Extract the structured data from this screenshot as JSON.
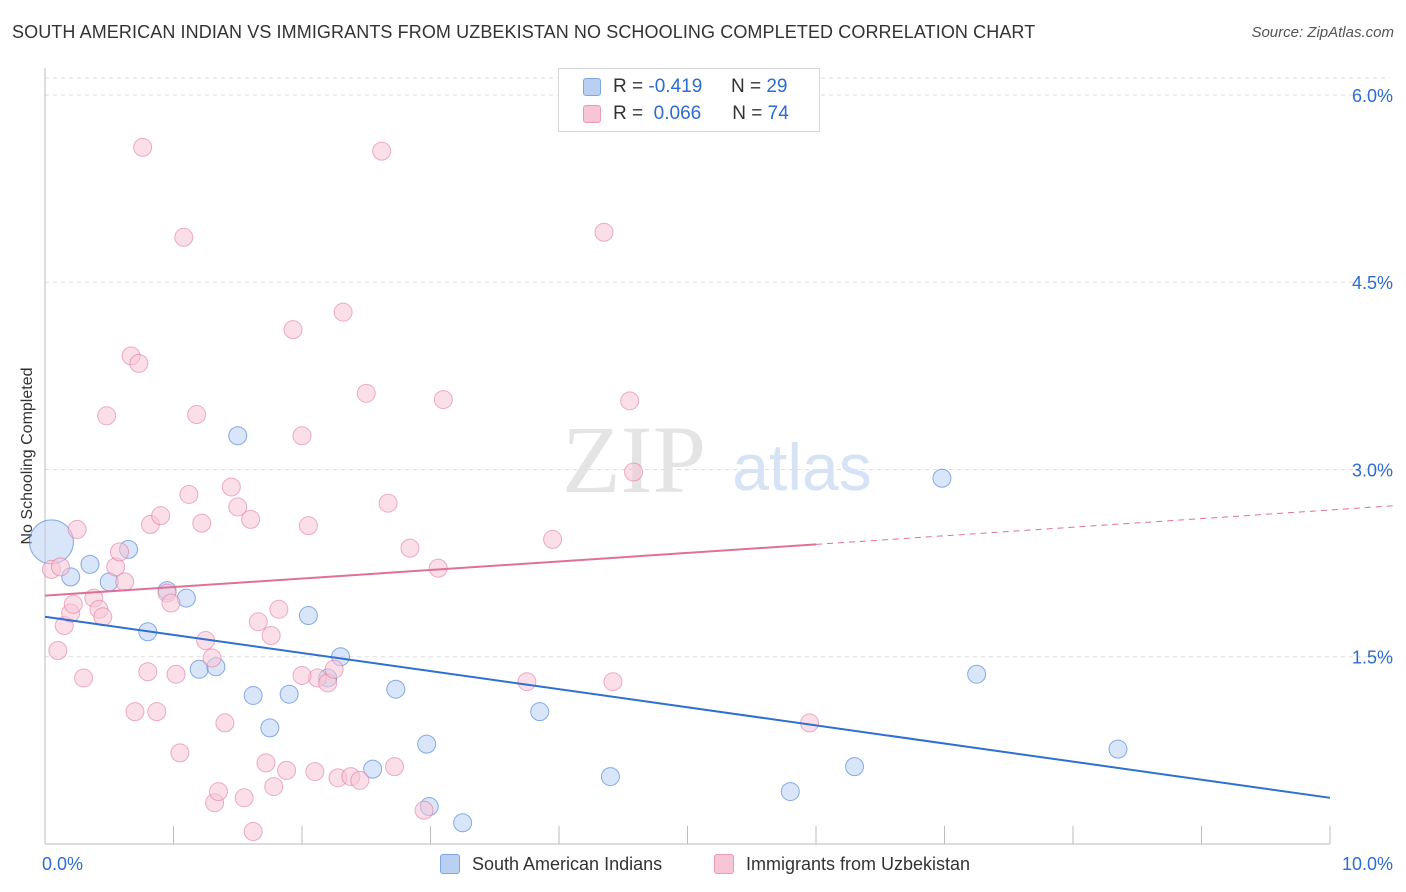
{
  "title": "SOUTH AMERICAN INDIAN VS IMMIGRANTS FROM UZBEKISTAN NO SCHOOLING COMPLETED CORRELATION CHART",
  "source": "Source: ZipAtlas.com",
  "watermark": {
    "zip": "ZIP",
    "atlas": "atlas"
  },
  "legend": {
    "rows": [
      {
        "r_label": "R =",
        "r_value": "-0.419",
        "n_label": "N =",
        "n_value": "29"
      },
      {
        "r_label": "R =",
        "r_value": "0.066",
        "n_label": "N =",
        "n_value": "74"
      }
    ]
  },
  "chart_data": {
    "type": "scatter",
    "ylabel": "No Schooling Completed",
    "xlim": [
      0,
      10
    ],
    "ylim": [
      0,
      6.2
    ],
    "x_tick_labels": [
      {
        "value": 0,
        "label": "0.0%"
      },
      {
        "value": 10,
        "label": "10.0%"
      }
    ],
    "x_minor_ticks": [
      0,
      1,
      2,
      3,
      4,
      5,
      6,
      7,
      8,
      9,
      10
    ],
    "y_ticks": [
      {
        "value": 1.5,
        "label": "1.5%"
      },
      {
        "value": 3.0,
        "label": "3.0%"
      },
      {
        "value": 4.5,
        "label": "4.5%"
      },
      {
        "value": 6.0,
        "label": "6.0%"
      }
    ],
    "grid": true,
    "legend_position": "top-center",
    "series": [
      {
        "name": "South American Indians",
        "color": "#2f6fd1",
        "fill": "#b9d0f2",
        "regression": {
          "x0": 0,
          "y0": 1.82,
          "x1": 10,
          "y1": 0.37
        },
        "points": [
          [
            0.05,
            2.42,
            22
          ],
          [
            0.2,
            2.14,
            9
          ],
          [
            0.35,
            2.24,
            9
          ],
          [
            0.5,
            2.1,
            9
          ],
          [
            0.65,
            2.36,
            9
          ],
          [
            0.8,
            1.7,
            9
          ],
          [
            0.95,
            2.03,
            9
          ],
          [
            1.1,
            1.97,
            9
          ],
          [
            1.2,
            1.4,
            9
          ],
          [
            1.33,
            1.42,
            9
          ],
          [
            1.5,
            3.27,
            9
          ],
          [
            1.62,
            1.19,
            9
          ],
          [
            1.75,
            0.93,
            9
          ],
          [
            1.9,
            1.2,
            9
          ],
          [
            2.05,
            1.83,
            9
          ],
          [
            2.2,
            1.33,
            9
          ],
          [
            2.3,
            1.5,
            9
          ],
          [
            2.55,
            0.6,
            9
          ],
          [
            2.73,
            1.24,
            9
          ],
          [
            2.97,
            0.8,
            9
          ],
          [
            2.99,
            0.3,
            9
          ],
          [
            3.25,
            0.17,
            9
          ],
          [
            3.85,
            1.06,
            9
          ],
          [
            4.4,
            0.54,
            9
          ],
          [
            5.8,
            0.42,
            9
          ],
          [
            6.3,
            0.62,
            9
          ],
          [
            6.98,
            2.93,
            9
          ],
          [
            7.25,
            1.36,
            9
          ],
          [
            8.35,
            0.76,
            9
          ]
        ]
      },
      {
        "name": "Immigrants from Uzbekistan",
        "color": "#e0709a",
        "fill": "#f7c5d5",
        "regression": {
          "x0": 0,
          "y0": 1.99,
          "x1": 6,
          "y1": 2.4,
          "dash_to_x": 10.5,
          "dash_to_y": 2.71
        },
        "points": [
          [
            0.05,
            2.2,
            9
          ],
          [
            0.1,
            1.55,
            9
          ],
          [
            0.12,
            2.22,
            9
          ],
          [
            0.15,
            1.75,
            9
          ],
          [
            0.2,
            1.85,
            9
          ],
          [
            0.22,
            1.92,
            9
          ],
          [
            0.25,
            2.52,
            9
          ],
          [
            0.3,
            1.33,
            9
          ],
          [
            0.38,
            1.97,
            9
          ],
          [
            0.42,
            1.88,
            9
          ],
          [
            0.45,
            1.82,
            9
          ],
          [
            0.48,
            3.43,
            9
          ],
          [
            0.55,
            2.22,
            9
          ],
          [
            0.58,
            2.34,
            9
          ],
          [
            0.62,
            2.1,
            9
          ],
          [
            0.67,
            3.91,
            9
          ],
          [
            0.7,
            1.06,
            9
          ],
          [
            0.73,
            3.85,
            9
          ],
          [
            0.76,
            5.58,
            9
          ],
          [
            0.8,
            1.38,
            9
          ],
          [
            0.82,
            2.56,
            9
          ],
          [
            0.87,
            1.06,
            9
          ],
          [
            0.9,
            2.63,
            9
          ],
          [
            0.95,
            2.01,
            9
          ],
          [
            0.98,
            1.93,
            9
          ],
          [
            1.02,
            1.36,
            9
          ],
          [
            1.05,
            0.73,
            9
          ],
          [
            1.08,
            4.86,
            9
          ],
          [
            1.12,
            2.8,
            9
          ],
          [
            1.18,
            3.44,
            9
          ],
          [
            1.22,
            2.57,
            9
          ],
          [
            1.25,
            1.63,
            9
          ],
          [
            1.3,
            1.49,
            9
          ],
          [
            1.32,
            0.33,
            9
          ],
          [
            1.35,
            0.42,
            9
          ],
          [
            1.4,
            0.97,
            9
          ],
          [
            1.45,
            2.86,
            9
          ],
          [
            1.5,
            2.7,
            9
          ],
          [
            1.55,
            0.37,
            9
          ],
          [
            1.6,
            2.6,
            9
          ],
          [
            1.62,
            0.1,
            9
          ],
          [
            1.66,
            1.78,
            9
          ],
          [
            1.72,
            0.65,
            9
          ],
          [
            1.76,
            1.67,
            9
          ],
          [
            1.78,
            0.46,
            9
          ],
          [
            1.82,
            1.88,
            9
          ],
          [
            1.88,
            0.59,
            9
          ],
          [
            1.93,
            4.12,
            9
          ],
          [
            2.0,
            3.27,
            9
          ],
          [
            2.05,
            2.55,
            9
          ],
          [
            2.1,
            0.58,
            9
          ],
          [
            2.12,
            1.33,
            9
          ],
          [
            2.2,
            1.29,
            9
          ],
          [
            2.25,
            1.4,
            9
          ],
          [
            2.28,
            0.53,
            9
          ],
          [
            2.32,
            4.26,
            9
          ],
          [
            2.38,
            0.54,
            9
          ],
          [
            2.45,
            0.51,
            9
          ],
          [
            2.5,
            3.61,
            9
          ],
          [
            2.62,
            5.55,
            9
          ],
          [
            2.67,
            2.73,
            9
          ],
          [
            2.72,
            0.62,
            9
          ],
          [
            2.84,
            2.37,
            9
          ],
          [
            2.95,
            0.27,
            9
          ],
          [
            3.06,
            2.21,
            9
          ],
          [
            3.1,
            3.56,
            9
          ],
          [
            3.75,
            1.3,
            9
          ],
          [
            3.95,
            2.44,
            9
          ],
          [
            4.35,
            4.9,
            9
          ],
          [
            4.42,
            1.3,
            9
          ],
          [
            4.55,
            3.55,
            9
          ],
          [
            4.58,
            2.98,
            9
          ],
          [
            5.95,
            0.97,
            9
          ],
          [
            2.0,
            1.35,
            9
          ]
        ]
      }
    ]
  }
}
